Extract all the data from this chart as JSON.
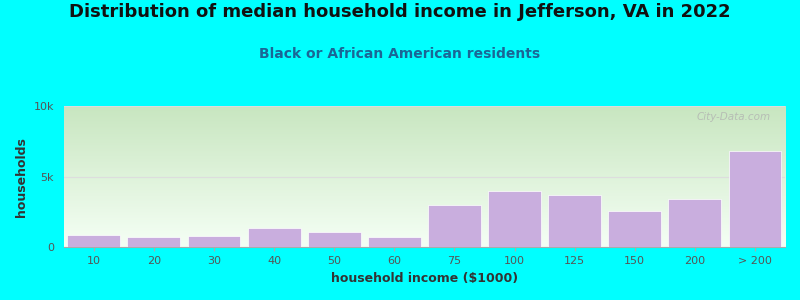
{
  "title": "Distribution of median household income in Jefferson, VA in 2022",
  "subtitle": "Black or African American residents",
  "xlabel": "household income ($1000)",
  "ylabel": "households",
  "background_color": "#00FFFF",
  "plot_bg_top": "#c8e6c0",
  "plot_bg_bottom": "#f5fff5",
  "bar_color": "#c9aede",
  "bar_edge_color": "#ffffff",
  "categories": [
    "10",
    "20",
    "30",
    "40",
    "50",
    "60",
    "75",
    "100",
    "125",
    "150",
    "200",
    "> 200"
  ],
  "values": [
    900,
    750,
    800,
    1400,
    1100,
    750,
    3000,
    4000,
    3700,
    2600,
    3400,
    6800
  ],
  "ylim": [
    0,
    10000
  ],
  "yticks": [
    0,
    5000,
    10000
  ],
  "ytick_labels": [
    "0",
    "5k",
    "10k"
  ],
  "title_fontsize": 13,
  "subtitle_fontsize": 10,
  "axis_label_fontsize": 9,
  "tick_fontsize": 8,
  "watermark_text": "City-Data.com",
  "watermark_color": "#b0b0b0",
  "grid_color": "#dddddd"
}
